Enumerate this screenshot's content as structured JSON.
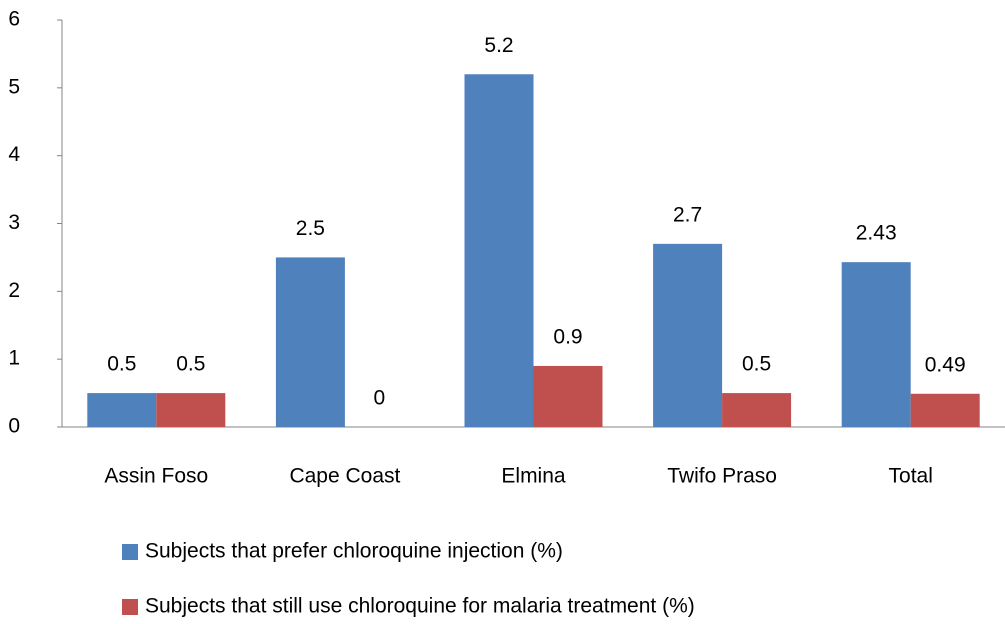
{
  "chart_data": {
    "type": "bar",
    "categories": [
      "Assin Foso",
      "Cape Coast",
      "Elmina",
      "Twifo Praso",
      "Total"
    ],
    "series": [
      {
        "name": "Subjects that prefer chloroquine injection (%)",
        "color": "#4f81bd",
        "values": [
          0.5,
          2.5,
          5.2,
          2.7,
          2.43
        ]
      },
      {
        "name": "Subjects that still use chloroquine for malaria treatment (%)",
        "color": "#c0504d",
        "values": [
          0.5,
          0,
          0.9,
          0.5,
          0.49
        ]
      }
    ],
    "ylim": [
      0,
      6
    ],
    "yticks": [
      0,
      1,
      2,
      3,
      4,
      5,
      6
    ],
    "grid": false,
    "legend": "bottom"
  }
}
